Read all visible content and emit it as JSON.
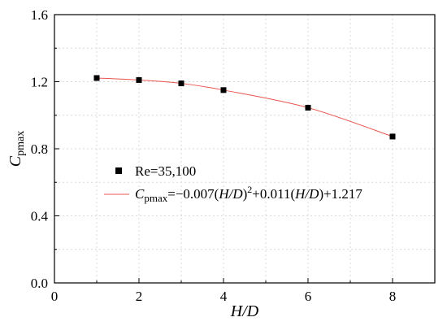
{
  "chart_data": {
    "type": "scatter",
    "xlabel": "H/D",
    "ylabel": "C",
    "ylabel_sub": "pmax",
    "xlim": [
      0,
      9
    ],
    "ylim": [
      0.0,
      1.6
    ],
    "x_ticks": [
      0,
      2,
      4,
      6,
      8
    ],
    "y_ticks": [
      0.0,
      0.4,
      0.8,
      1.2,
      1.6
    ],
    "x_tick_labels": [
      "0",
      "2",
      "4",
      "6",
      "8"
    ],
    "y_tick_labels": [
      "0.0",
      "0.4",
      "0.8",
      "1.2",
      "1.6"
    ],
    "grid": true,
    "legend_position": "center-left",
    "series": [
      {
        "name": "Re=35,100",
        "marker": "square",
        "color": "#000000",
        "x": [
          1,
          2,
          3,
          4,
          6,
          8
        ],
        "y": [
          1.222,
          1.21,
          1.19,
          1.15,
          1.045,
          0.873
        ]
      }
    ],
    "fit": {
      "color": "#e8554e",
      "coefficients": {
        "a": -0.007,
        "b": 0.011,
        "c": 1.217
      },
      "x_range": [
        1,
        8
      ],
      "legend_label": {
        "var": "C",
        "var_sub": "pmax",
        "p1": "=−0.007(",
        "hd1": "H/D",
        "p2": ")",
        "sup": "2",
        "p3": "+0.011(",
        "hd2": "H/D",
        "p4": ")+1.217"
      }
    }
  }
}
